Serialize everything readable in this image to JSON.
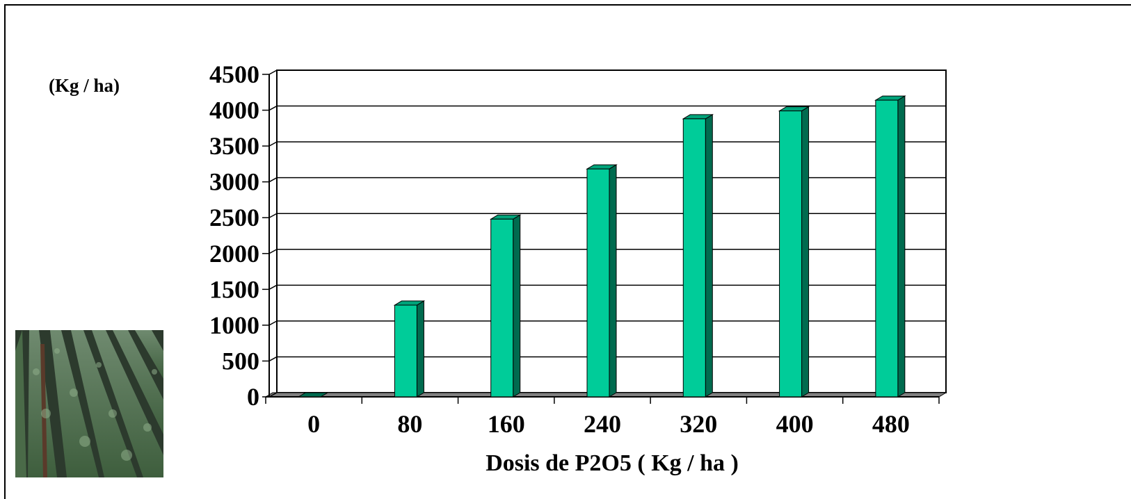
{
  "chart_data": {
    "type": "bar",
    "ylabel": "(Kg / ha)",
    "xlabel": "Dosis de P2O5 ( Kg / ha )",
    "categories": [
      "0",
      "80",
      "160",
      "240",
      "320",
      "400",
      "480"
    ],
    "values": [
      0,
      1280,
      2480,
      3180,
      3880,
      3990,
      4140
    ],
    "ylim": [
      0,
      4500
    ],
    "y_ticks": [
      "0",
      "500",
      "1000",
      "1500",
      "2000",
      "2500",
      "3000",
      "3500",
      "4000",
      "4500"
    ],
    "grid": true,
    "legend": "none",
    "style": "3d-column",
    "colors": {
      "bar_front": "#00cc99",
      "bar_side": "#006b4f",
      "bar_top": "#00a37a",
      "floor": "#808080",
      "grid": "#000000"
    }
  },
  "photo": {
    "icon": "soybean-field-photo"
  }
}
